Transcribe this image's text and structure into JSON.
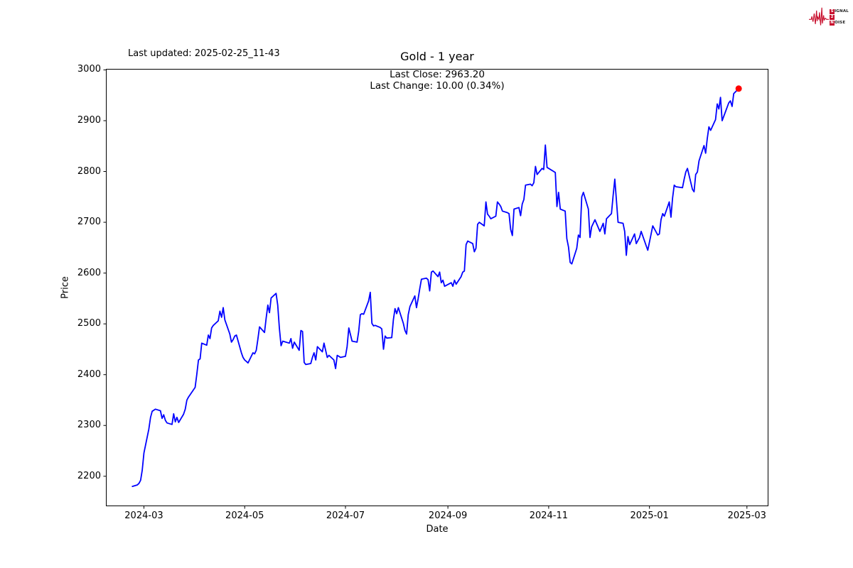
{
  "texts": {
    "last_updated": "Last updated: 2025-02-25_11-43",
    "subtitle_close": "Last Close: 2963.20",
    "subtitle_change": "Last Change: 10.00 (0.34%)"
  },
  "logo": {
    "color": "#c8102e",
    "line1_boxed": "S",
    "line1_rest": "IGNAL",
    "line2_boxed": "2",
    "line2_rest": "",
    "line3_boxed": "N",
    "line3_rest": "OISE"
  },
  "chart_data": {
    "type": "line",
    "title": "Gold - 1 year",
    "xlabel": "Date",
    "ylabel": "Price",
    "line_color": "#0000ff",
    "marker_color": "#ff0000",
    "grid": false,
    "last_close": 2963.2,
    "last_change": 10.0,
    "last_change_pct": 0.34,
    "ylim": [
      2141,
      3002
    ],
    "xlim": [
      "2024-02-07",
      "2025-03-14"
    ],
    "y_ticks": [
      2200,
      2300,
      2400,
      2500,
      2600,
      2700,
      2800,
      2900,
      3000
    ],
    "x_ticks": [
      {
        "date": "2024-03-01",
        "label": "2024-03"
      },
      {
        "date": "2024-05-01",
        "label": "2024-05"
      },
      {
        "date": "2024-07-01",
        "label": "2024-07"
      },
      {
        "date": "2024-09-01",
        "label": "2024-09"
      },
      {
        "date": "2024-11-01",
        "label": "2024-11"
      },
      {
        "date": "2025-01-01",
        "label": "2025-01"
      },
      {
        "date": "2025-03-01",
        "label": "2025-03"
      }
    ],
    "points": [
      [
        "2024-02-23",
        2180
      ],
      [
        "2024-02-26",
        2183
      ],
      [
        "2024-02-27",
        2186
      ],
      [
        "2024-02-28",
        2192
      ],
      [
        "2024-02-29",
        2212
      ],
      [
        "2024-03-01",
        2246
      ],
      [
        "2024-03-04",
        2293
      ],
      [
        "2024-03-05",
        2316
      ],
      [
        "2024-03-06",
        2328
      ],
      [
        "2024-03-07",
        2330
      ],
      [
        "2024-03-08",
        2332
      ],
      [
        "2024-03-11",
        2329
      ],
      [
        "2024-03-12",
        2314
      ],
      [
        "2024-03-13",
        2321
      ],
      [
        "2024-03-14",
        2310
      ],
      [
        "2024-03-15",
        2305
      ],
      [
        "2024-03-18",
        2302
      ],
      [
        "2024-03-19",
        2323
      ],
      [
        "2024-03-20",
        2307
      ],
      [
        "2024-03-21",
        2316
      ],
      [
        "2024-03-22",
        2306
      ],
      [
        "2024-03-25",
        2322
      ],
      [
        "2024-03-26",
        2332
      ],
      [
        "2024-03-27",
        2350
      ],
      [
        "2024-03-28",
        2356
      ],
      [
        "2024-04-01",
        2375
      ],
      [
        "2024-04-02",
        2400
      ],
      [
        "2024-04-03",
        2429
      ],
      [
        "2024-04-04",
        2431
      ],
      [
        "2024-04-05",
        2462
      ],
      [
        "2024-04-08",
        2458
      ],
      [
        "2024-04-09",
        2478
      ],
      [
        "2024-04-10",
        2471
      ],
      [
        "2024-04-11",
        2492
      ],
      [
        "2024-04-12",
        2497
      ],
      [
        "2024-04-15",
        2506
      ],
      [
        "2024-04-16",
        2525
      ],
      [
        "2024-04-17",
        2513
      ],
      [
        "2024-04-18",
        2532
      ],
      [
        "2024-04-19",
        2508
      ],
      [
        "2024-04-22",
        2480
      ],
      [
        "2024-04-23",
        2464
      ],
      [
        "2024-04-24",
        2469
      ],
      [
        "2024-04-25",
        2476
      ],
      [
        "2024-04-26",
        2478
      ],
      [
        "2024-04-29",
        2443
      ],
      [
        "2024-04-30",
        2434
      ],
      [
        "2024-05-01",
        2429
      ],
      [
        "2024-05-02",
        2426
      ],
      [
        "2024-05-03",
        2423
      ],
      [
        "2024-05-06",
        2443
      ],
      [
        "2024-05-07",
        2441
      ],
      [
        "2024-05-08",
        2448
      ],
      [
        "2024-05-09",
        2470
      ],
      [
        "2024-05-10",
        2494
      ],
      [
        "2024-05-13",
        2483
      ],
      [
        "2024-05-14",
        2511
      ],
      [
        "2024-05-15",
        2537
      ],
      [
        "2024-05-16",
        2522
      ],
      [
        "2024-05-17",
        2551
      ],
      [
        "2024-05-20",
        2560
      ],
      [
        "2024-05-21",
        2537
      ],
      [
        "2024-05-22",
        2492
      ],
      [
        "2024-05-23",
        2457
      ],
      [
        "2024-05-24",
        2466
      ],
      [
        "2024-05-28",
        2462
      ],
      [
        "2024-05-29",
        2471
      ],
      [
        "2024-05-30",
        2452
      ],
      [
        "2024-05-31",
        2464
      ],
      [
        "2024-06-03",
        2448
      ],
      [
        "2024-06-04",
        2487
      ],
      [
        "2024-06-05",
        2485
      ],
      [
        "2024-06-06",
        2424
      ],
      [
        "2024-06-07",
        2420
      ],
      [
        "2024-06-10",
        2422
      ],
      [
        "2024-06-11",
        2434
      ],
      [
        "2024-06-12",
        2443
      ],
      [
        "2024-06-13",
        2429
      ],
      [
        "2024-06-14",
        2455
      ],
      [
        "2024-06-17",
        2445
      ],
      [
        "2024-06-18",
        2462
      ],
      [
        "2024-06-20",
        2434
      ],
      [
        "2024-06-21",
        2438
      ],
      [
        "2024-06-24",
        2429
      ],
      [
        "2024-06-25",
        2412
      ],
      [
        "2024-06-26",
        2438
      ],
      [
        "2024-06-27",
        2436
      ],
      [
        "2024-06-28",
        2434
      ],
      [
        "2024-07-01",
        2436
      ],
      [
        "2024-07-02",
        2455
      ],
      [
        "2024-07-03",
        2492
      ],
      [
        "2024-07-05",
        2466
      ],
      [
        "2024-07-08",
        2464
      ],
      [
        "2024-07-09",
        2485
      ],
      [
        "2024-07-10",
        2518
      ],
      [
        "2024-07-11",
        2520
      ],
      [
        "2024-07-12",
        2519
      ],
      [
        "2024-07-15",
        2545
      ],
      [
        "2024-07-16",
        2562
      ],
      [
        "2024-07-17",
        2501
      ],
      [
        "2024-07-18",
        2496
      ],
      [
        "2024-07-19",
        2497
      ],
      [
        "2024-07-22",
        2493
      ],
      [
        "2024-07-23",
        2490
      ],
      [
        "2024-07-24",
        2450
      ],
      [
        "2024-07-25",
        2476
      ],
      [
        "2024-07-26",
        2472
      ],
      [
        "2024-07-29",
        2473
      ],
      [
        "2024-07-30",
        2508
      ],
      [
        "2024-07-31",
        2530
      ],
      [
        "2024-08-01",
        2520
      ],
      [
        "2024-08-02",
        2532
      ],
      [
        "2024-08-05",
        2501
      ],
      [
        "2024-08-06",
        2487
      ],
      [
        "2024-08-07",
        2480
      ],
      [
        "2024-08-08",
        2518
      ],
      [
        "2024-08-09",
        2534
      ],
      [
        "2024-08-12",
        2555
      ],
      [
        "2024-08-13",
        2532
      ],
      [
        "2024-08-14",
        2550
      ],
      [
        "2024-08-15",
        2570
      ],
      [
        "2024-08-16",
        2588
      ],
      [
        "2024-08-19",
        2590
      ],
      [
        "2024-08-20",
        2587
      ],
      [
        "2024-08-21",
        2565
      ],
      [
        "2024-08-22",
        2602
      ],
      [
        "2024-08-23",
        2604
      ],
      [
        "2024-08-26",
        2593
      ],
      [
        "2024-08-27",
        2602
      ],
      [
        "2024-08-28",
        2581
      ],
      [
        "2024-08-29",
        2586
      ],
      [
        "2024-08-30",
        2574
      ],
      [
        "2024-09-03",
        2581
      ],
      [
        "2024-09-04",
        2574
      ],
      [
        "2024-09-05",
        2586
      ],
      [
        "2024-09-06",
        2578
      ],
      [
        "2024-09-09",
        2593
      ],
      [
        "2024-09-10",
        2602
      ],
      [
        "2024-09-11",
        2604
      ],
      [
        "2024-09-12",
        2656
      ],
      [
        "2024-09-13",
        2663
      ],
      [
        "2024-09-16",
        2658
      ],
      [
        "2024-09-17",
        2642
      ],
      [
        "2024-09-18",
        2649
      ],
      [
        "2024-09-19",
        2696
      ],
      [
        "2024-09-20",
        2700
      ],
      [
        "2024-09-23",
        2693
      ],
      [
        "2024-09-24",
        2740
      ],
      [
        "2024-09-25",
        2716
      ],
      [
        "2024-09-26",
        2712
      ],
      [
        "2024-09-27",
        2707
      ],
      [
        "2024-09-30",
        2712
      ],
      [
        "2024-10-01",
        2740
      ],
      [
        "2024-10-02",
        2736
      ],
      [
        "2024-10-03",
        2731
      ],
      [
        "2024-10-04",
        2722
      ],
      [
        "2024-10-07",
        2719
      ],
      [
        "2024-10-08",
        2717
      ],
      [
        "2024-10-09",
        2686
      ],
      [
        "2024-10-10",
        2674
      ],
      [
        "2024-10-11",
        2726
      ],
      [
        "2024-10-14",
        2729
      ],
      [
        "2024-10-15",
        2713
      ],
      [
        "2024-10-16",
        2736
      ],
      [
        "2024-10-17",
        2745
      ],
      [
        "2024-10-18",
        2773
      ],
      [
        "2024-10-21",
        2775
      ],
      [
        "2024-10-22",
        2772
      ],
      [
        "2024-10-23",
        2778
      ],
      [
        "2024-10-24",
        2810
      ],
      [
        "2024-10-25",
        2794
      ],
      [
        "2024-10-28",
        2806
      ],
      [
        "2024-10-29",
        2804
      ],
      [
        "2024-10-30",
        2852
      ],
      [
        "2024-10-31",
        2808
      ],
      [
        "2024-11-01",
        2806
      ],
      [
        "2024-11-04",
        2800
      ],
      [
        "2024-11-05",
        2798
      ],
      [
        "2024-11-06",
        2731
      ],
      [
        "2024-11-07",
        2759
      ],
      [
        "2024-11-08",
        2726
      ],
      [
        "2024-11-11",
        2722
      ],
      [
        "2024-11-12",
        2668
      ],
      [
        "2024-11-13",
        2651
      ],
      [
        "2024-11-14",
        2621
      ],
      [
        "2024-11-15",
        2618
      ],
      [
        "2024-11-18",
        2649
      ],
      [
        "2024-11-19",
        2675
      ],
      [
        "2024-11-20",
        2670
      ],
      [
        "2024-11-21",
        2750
      ],
      [
        "2024-11-22",
        2759
      ],
      [
        "2024-11-25",
        2726
      ],
      [
        "2024-11-26",
        2670
      ],
      [
        "2024-11-27",
        2691
      ],
      [
        "2024-11-29",
        2705
      ],
      [
        "2024-12-02",
        2682
      ],
      [
        "2024-12-03",
        2690
      ],
      [
        "2024-12-04",
        2698
      ],
      [
        "2024-12-05",
        2677
      ],
      [
        "2024-12-06",
        2707
      ],
      [
        "2024-12-09",
        2717
      ],
      [
        "2024-12-10",
        2752
      ],
      [
        "2024-12-11",
        2785
      ],
      [
        "2024-12-12",
        2743
      ],
      [
        "2024-12-13",
        2700
      ],
      [
        "2024-12-16",
        2698
      ],
      [
        "2024-12-17",
        2682
      ],
      [
        "2024-12-18",
        2635
      ],
      [
        "2024-12-19",
        2672
      ],
      [
        "2024-12-20",
        2656
      ],
      [
        "2024-12-23",
        2677
      ],
      [
        "2024-12-24",
        2658
      ],
      [
        "2024-12-26",
        2670
      ],
      [
        "2024-12-27",
        2682
      ],
      [
        "2024-12-30",
        2654
      ],
      [
        "2024-12-31",
        2645
      ],
      [
        "2025-01-02",
        2677
      ],
      [
        "2025-01-03",
        2693
      ],
      [
        "2025-01-06",
        2675
      ],
      [
        "2025-01-07",
        2677
      ],
      [
        "2025-01-08",
        2705
      ],
      [
        "2025-01-09",
        2717
      ],
      [
        "2025-01-10",
        2712
      ],
      [
        "2025-01-13",
        2740
      ],
      [
        "2025-01-14",
        2710
      ],
      [
        "2025-01-15",
        2748
      ],
      [
        "2025-01-16",
        2773
      ],
      [
        "2025-01-17",
        2770
      ],
      [
        "2025-01-21",
        2768
      ],
      [
        "2025-01-22",
        2785
      ],
      [
        "2025-01-23",
        2799
      ],
      [
        "2025-01-24",
        2806
      ],
      [
        "2025-01-27",
        2765
      ],
      [
        "2025-01-28",
        2760
      ],
      [
        "2025-01-29",
        2794
      ],
      [
        "2025-01-30",
        2799
      ],
      [
        "2025-01-31",
        2821
      ],
      [
        "2025-02-03",
        2851
      ],
      [
        "2025-02-04",
        2836
      ],
      [
        "2025-02-05",
        2865
      ],
      [
        "2025-02-06",
        2888
      ],
      [
        "2025-02-07",
        2881
      ],
      [
        "2025-02-10",
        2902
      ],
      [
        "2025-02-11",
        2933
      ],
      [
        "2025-02-12",
        2923
      ],
      [
        "2025-02-13",
        2946
      ],
      [
        "2025-02-14",
        2900
      ],
      [
        "2025-02-18",
        2935
      ],
      [
        "2025-02-19",
        2939
      ],
      [
        "2025-02-20",
        2928
      ],
      [
        "2025-02-21",
        2953.2
      ],
      [
        "2025-02-24",
        2963.2
      ]
    ]
  }
}
